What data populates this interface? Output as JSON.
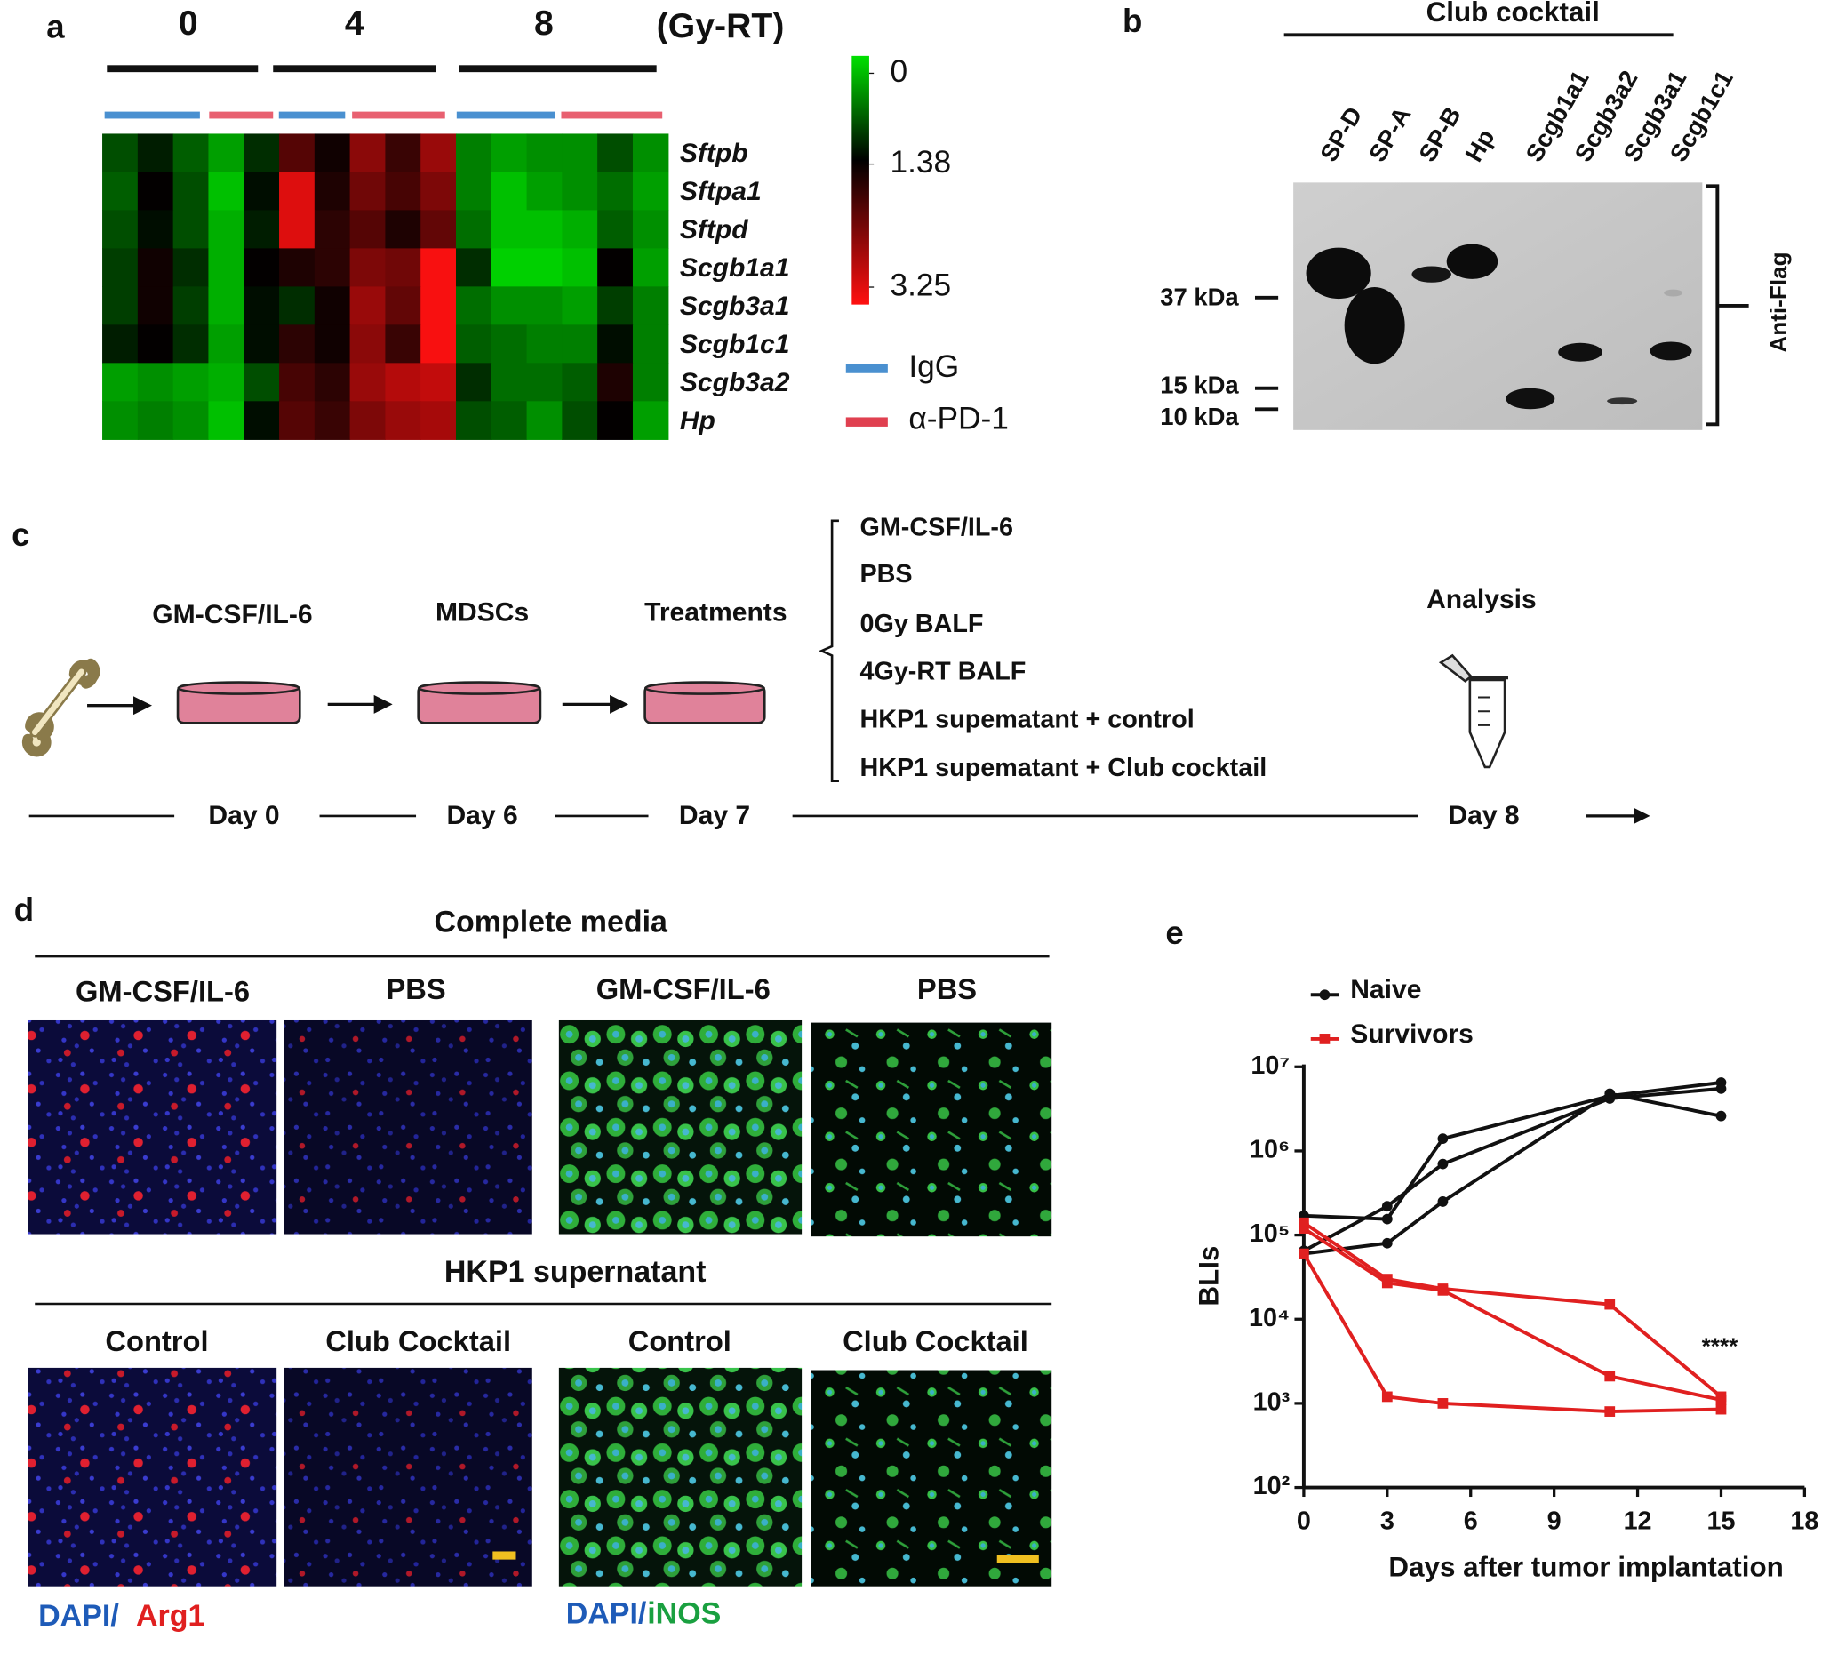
{
  "panel_a": {
    "letter": "a",
    "doses": [
      "0",
      "4",
      "8"
    ],
    "dose_unit": "(Gy-RT)",
    "genes": [
      "Sftpb",
      "Sftpa1",
      "Sftpd",
      "Scgb1a1",
      "Scgb3a1",
      "Scgb1c1",
      "Scgb3a2",
      "Hp"
    ],
    "colorbar_ticks": [
      0,
      1.38,
      3.25
    ],
    "legend": [
      "IgG",
      "α-PD-1"
    ],
    "heatmap": {
      "values": [
        [
          0.9,
          1.2,
          0.8,
          0.4,
          1.1,
          2.0,
          1.5,
          2.4,
          1.8,
          2.5,
          0.6,
          0.4,
          0.5,
          0.5,
          0.9,
          0.5
        ],
        [
          0.8,
          1.4,
          0.9,
          0.2,
          1.3,
          3.0,
          1.6,
          2.2,
          1.9,
          2.3,
          0.6,
          0.2,
          0.4,
          0.5,
          0.7,
          0.4
        ],
        [
          0.9,
          1.3,
          0.9,
          0.3,
          1.2,
          3.0,
          1.7,
          2.0,
          1.6,
          2.1,
          0.7,
          0.2,
          0.2,
          0.3,
          0.8,
          0.5
        ],
        [
          1.0,
          1.5,
          1.1,
          0.3,
          1.4,
          1.6,
          1.7,
          2.3,
          2.2,
          3.2,
          1.1,
          0.1,
          0.1,
          0.2,
          1.4,
          0.4
        ],
        [
          1.0,
          1.5,
          1.0,
          0.3,
          1.3,
          1.1,
          1.5,
          2.5,
          2.1,
          3.2,
          0.7,
          0.5,
          0.5,
          0.4,
          1.0,
          0.6
        ],
        [
          1.2,
          1.4,
          1.1,
          0.4,
          1.3,
          1.7,
          1.5,
          2.4,
          1.8,
          3.2,
          0.8,
          0.7,
          0.6,
          0.6,
          1.3,
          0.6
        ],
        [
          0.4,
          0.5,
          0.4,
          0.3,
          0.9,
          1.9,
          1.7,
          2.5,
          2.7,
          2.8,
          1.1,
          0.7,
          0.7,
          0.8,
          1.6,
          0.6
        ],
        [
          0.5,
          0.6,
          0.5,
          0.2,
          1.3,
          2.0,
          1.8,
          2.3,
          2.5,
          2.6,
          0.9,
          0.8,
          0.5,
          0.9,
          1.4,
          0.4
        ]
      ]
    }
  },
  "panel_b": {
    "letter": "b",
    "title": "Club cocktail",
    "lanes": [
      "SP-D",
      "SP-A",
      "SP-B",
      "Hp",
      "Scgb1a1",
      "Scgb3a2",
      "Scgb3a1",
      "Scgb1c1"
    ],
    "markers": [
      "37 kDa",
      "15 kDa",
      "10 kDa"
    ],
    "antibody": "Anti-Flag"
  },
  "panel_c": {
    "letter": "c",
    "steps": [
      "GM-CSF/IL-6",
      "MDSCs",
      "Treatments",
      "Analysis"
    ],
    "treatments": [
      "GM-CSF/IL-6",
      "PBS",
      "0Gy BALF",
      "4Gy-RT BALF",
      "HKP1  supematant + control",
      "HKP1  supematant + Club cocktail"
    ],
    "days": [
      "Day 0",
      "Day 6",
      "Day 7",
      "Day 8"
    ]
  },
  "panel_d": {
    "letter": "d",
    "top_title": "Complete media",
    "top_labels": [
      "GM-CSF/IL-6",
      "PBS",
      "GM-CSF/IL-6",
      "PBS"
    ],
    "bottom_title": "HKP1 supernatant",
    "bottom_labels": [
      "Control",
      "Club  Cocktail",
      "Control",
      "Club  Cocktail"
    ],
    "stain_left": [
      "DAPI/",
      "Arg1"
    ],
    "stain_right": [
      "DAPI/",
      "iNOS"
    ]
  },
  "chart_data": {
    "type": "line",
    "letter": "e",
    "x_label": "Days after tumor implantation",
    "y_label": "BLIs",
    "annotation": "****",
    "log_y": true,
    "xlim": [
      0,
      18
    ],
    "xticks": [
      0,
      3,
      6,
      9,
      12,
      15,
      18
    ],
    "ylim": [
      100,
      10000000
    ],
    "yticks": [
      {
        "value": 100,
        "label": "10²"
      },
      {
        "value": 1000,
        "label": "10³"
      },
      {
        "value": 10000,
        "label": "10⁴"
      },
      {
        "value": 100000,
        "label": "10⁵"
      },
      {
        "value": 1000000,
        "label": "10⁶"
      },
      {
        "value": 10000000,
        "label": "10⁷"
      }
    ],
    "series": [
      {
        "name": "Naive",
        "color": "#111111",
        "marker": "circle",
        "runs": [
          {
            "x": [
              0,
              3,
              5,
              11,
              15
            ],
            "values": [
              170000,
              155000,
              1400000,
              4500000,
              6500000
            ]
          },
          {
            "x": [
              0,
              3,
              5,
              11,
              15
            ],
            "values": [
              65000,
              220000,
              700000,
              4200000,
              5500000
            ]
          },
          {
            "x": [
              0,
              3,
              5,
              11,
              15
            ],
            "values": [
              60000,
              80000,
              250000,
              4800000,
              2600000
            ]
          }
        ]
      },
      {
        "name": "Survivors",
        "color": "#e02020",
        "marker": "square",
        "runs": [
          {
            "x": [
              0,
              3,
              5,
              11,
              15
            ],
            "values": [
              140000,
              30000,
              23000,
              15000,
              1200
            ]
          },
          {
            "x": [
              0,
              3,
              5,
              11,
              15
            ],
            "values": [
              120000,
              27000,
              22000,
              2100,
              1100
            ]
          },
          {
            "x": [
              0,
              3,
              5,
              11,
              15
            ],
            "values": [
              60000,
              1200,
              1000,
              800,
              850
            ]
          }
        ]
      }
    ]
  }
}
